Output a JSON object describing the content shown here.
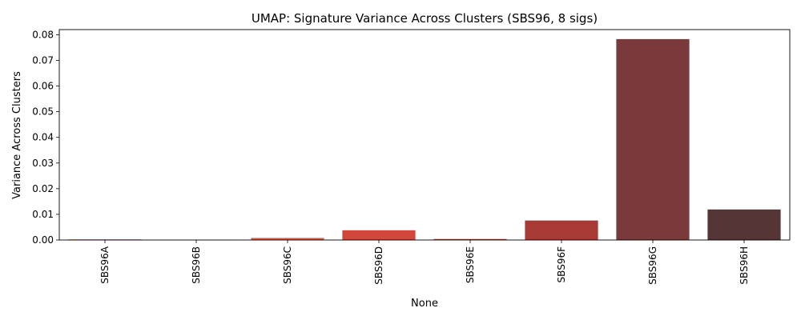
{
  "chart_data": {
    "type": "bar",
    "title": "UMAP: Signature Variance Across Clusters (SBS96, 8 sigs)",
    "xlabel": "None",
    "ylabel": "Variance Across Clusters",
    "categories": [
      "SBS96A",
      "SBS96B",
      "SBS96C",
      "SBS96D",
      "SBS96E",
      "SBS96F",
      "SBS96G",
      "SBS96H"
    ],
    "values": [
      0.0003,
      0.0001,
      0.0008,
      0.0038,
      0.0004,
      0.0076,
      0.0783,
      0.0119
    ],
    "colors": [
      "#E8A060",
      "#DB7A4F",
      "#D95A47",
      "#D2463C",
      "#C23C36",
      "#A83A36",
      "#7A393A",
      "#553536"
    ],
    "ylim": [
      0,
      0.082
    ],
    "yticks": [
      0.0,
      0.01,
      0.02,
      0.03,
      0.04,
      0.05,
      0.06,
      0.07,
      0.08
    ],
    "ytick_labels": [
      "0.00",
      "0.01",
      "0.02",
      "0.03",
      "0.04",
      "0.05",
      "0.06",
      "0.07",
      "0.08"
    ],
    "grid": false,
    "legend": "none"
  }
}
